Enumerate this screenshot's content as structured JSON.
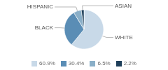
{
  "chart_data": {
    "type": "pie",
    "categories": [
      "WHITE",
      "BLACK",
      "HISPANIC",
      "ASIAN"
    ],
    "values": [
      60.9,
      30.4,
      6.5,
      2.2
    ],
    "value_labels": [
      "60.9%",
      "30.4%",
      "6.5%",
      "2.2%"
    ],
    "colors": [
      "#c8d9e8",
      "#5a8db5",
      "#8aafc8",
      "#1e3f5a"
    ],
    "legend": "bottom"
  }
}
